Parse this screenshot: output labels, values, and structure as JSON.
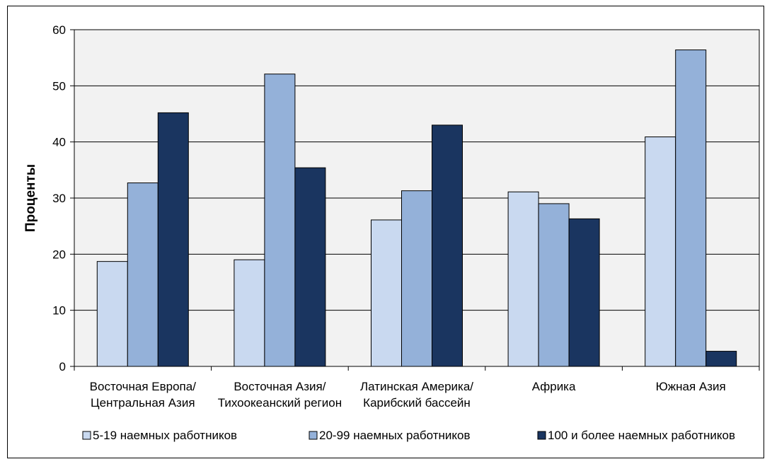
{
  "chart_data": {
    "type": "bar",
    "ylabel": "Проценты",
    "ylim": [
      0,
      60
    ],
    "yticks": [
      0,
      10,
      20,
      30,
      40,
      50,
      60
    ],
    "grid": true,
    "legend_position": "bottom",
    "categories": [
      [
        "Восточная Европа/",
        "Центральная Азия"
      ],
      [
        "Восточная Азия/",
        "Тихоокеанский регион"
      ],
      [
        "Латинская Америка/",
        "Карибский бассейн"
      ],
      [
        "Африка"
      ],
      [
        "Южная Азия"
      ]
    ],
    "series": [
      {
        "name": "5-19 наемных работников",
        "color": "#c9d9f0",
        "values": [
          18.7,
          19.0,
          26.1,
          31.1,
          40.9
        ]
      },
      {
        "name": "20-99 наемных работников",
        "color": "#94b1d9",
        "values": [
          32.7,
          52.1,
          31.3,
          29.0,
          56.4
        ]
      },
      {
        "name": "100 и более наемных работников",
        "color": "#1a3560",
        "values": [
          45.2,
          35.4,
          43.0,
          26.3,
          2.7
        ]
      }
    ]
  }
}
